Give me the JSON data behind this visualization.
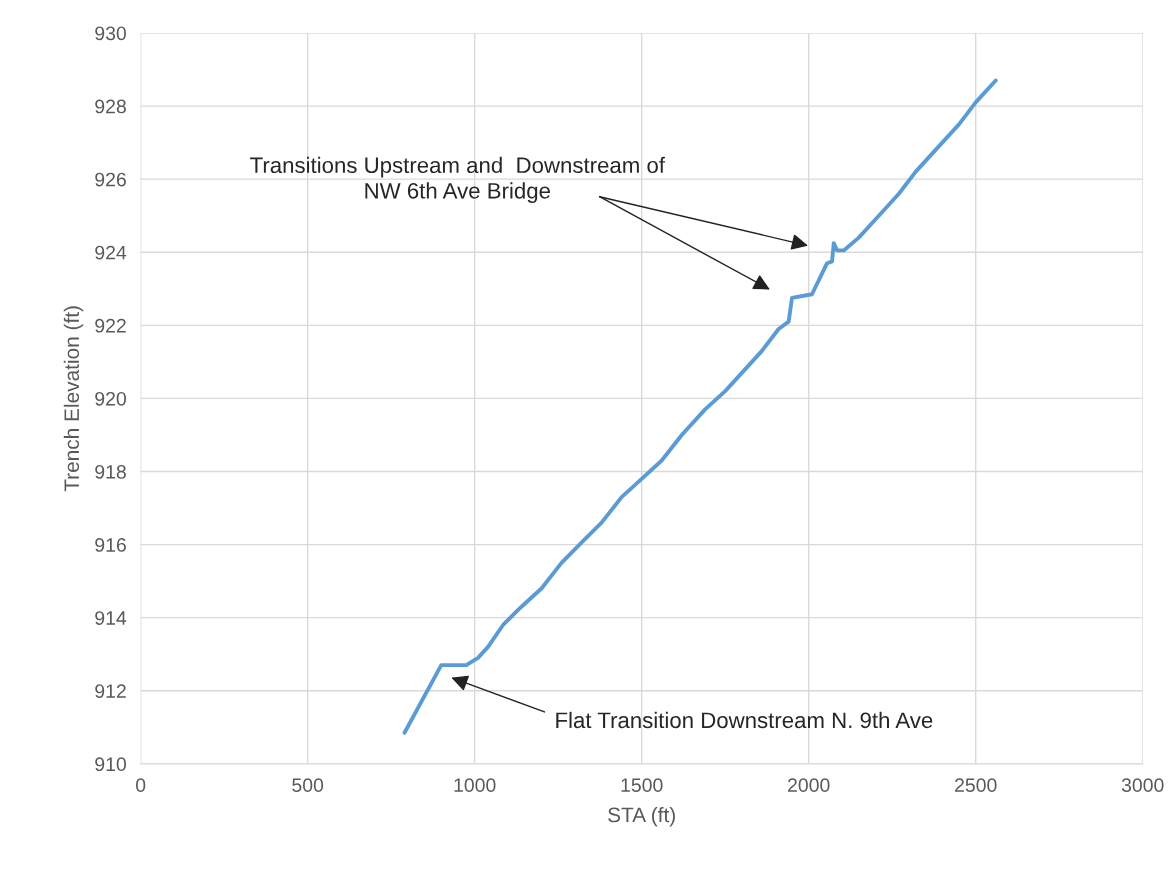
{
  "chart_data": {
    "type": "line",
    "xlabel": "STA (ft)",
    "ylabel": "Trench Elevation (ft)",
    "xlim": [
      0,
      3000
    ],
    "xticks": [
      0,
      500,
      1000,
      1500,
      2000,
      2500,
      3000
    ],
    "ylim": [
      910,
      930
    ],
    "yticks": [
      910,
      912,
      914,
      916,
      918,
      920,
      922,
      924,
      926,
      928,
      930
    ],
    "grid": true,
    "legend": false,
    "marker": "none",
    "line_style": "solid",
    "series": [
      {
        "color": "#5b9bd5",
        "x": [
          790,
          900,
          975,
          1010,
          1040,
          1085,
          1140,
          1200,
          1260,
          1325,
          1380,
          1440,
          1500,
          1560,
          1620,
          1690,
          1750,
          1800,
          1860,
          1910,
          1940,
          1950,
          2010,
          2055,
          2070,
          2075,
          2085,
          2105,
          2150,
          2210,
          2270,
          2320,
          2380,
          2450,
          2500,
          2560
        ],
        "values": [
          910.85,
          912.7,
          912.7,
          912.9,
          913.2,
          913.8,
          914.3,
          914.8,
          915.5,
          916.1,
          916.6,
          917.3,
          917.8,
          918.3,
          919.0,
          919.7,
          920.2,
          920.7,
          921.3,
          921.9,
          922.1,
          922.75,
          922.85,
          923.7,
          923.75,
          924.25,
          924.05,
          924.05,
          924.4,
          925.0,
          925.6,
          926.2,
          926.8,
          927.5,
          928.1,
          928.7
        ]
      }
    ],
    "annotations": [
      "Transitions Upstream and  Downstream of\nNW 6th Ave Bridge",
      "Flat Transition Downstream N. 9th Ave"
    ]
  }
}
